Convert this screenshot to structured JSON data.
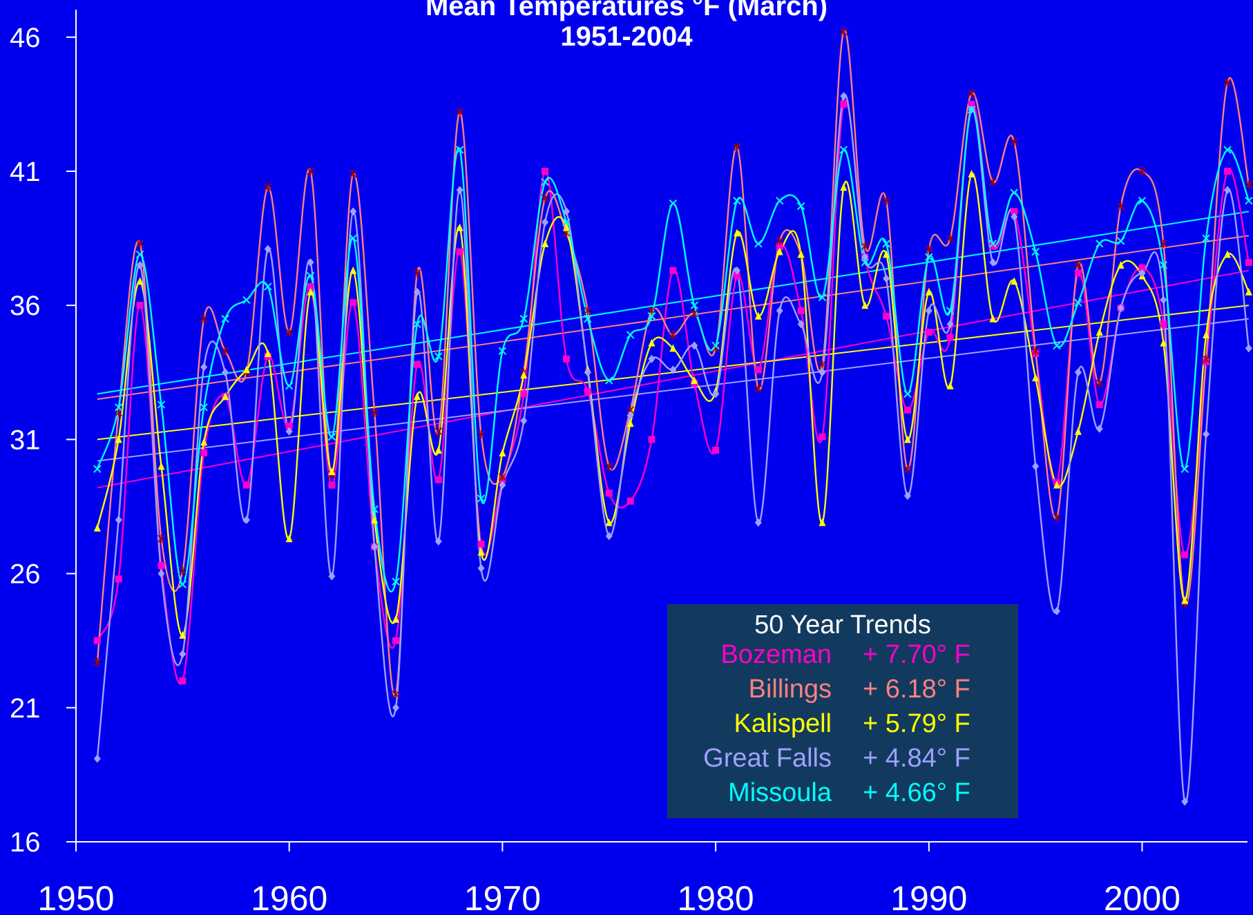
{
  "chart_data": {
    "type": "line",
    "title": "Mean Temperatures °F (March)",
    "subtitle": "1951-2004",
    "xlabel": "",
    "ylabel": "",
    "xlim": [
      1950,
      2005
    ],
    "ylim": [
      16,
      47
    ],
    "xticks": [
      "1950",
      "1960",
      "1970",
      "1980",
      "1990",
      "2000"
    ],
    "yticks": [
      "16",
      "21",
      "26",
      "31",
      "36",
      "41",
      "46"
    ],
    "grid": false,
    "x": [
      1951,
      1952,
      1953,
      1954,
      1955,
      1956,
      1957,
      1958,
      1959,
      1960,
      1961,
      1962,
      1963,
      1964,
      1965,
      1966,
      1967,
      1968,
      1969,
      1970,
      1971,
      1972,
      1973,
      1974,
      1975,
      1976,
      1977,
      1978,
      1979,
      1980,
      1981,
      1982,
      1983,
      1984,
      1985,
      1986,
      1987,
      1988,
      1989,
      1990,
      1991,
      1992,
      1993,
      1994,
      1995,
      1996,
      1997,
      1998,
      1999,
      2000,
      2001,
      2002,
      2003,
      2004,
      2005
    ],
    "series": [
      {
        "name": "Bozeman",
        "color": "#ff00cc",
        "marker": "square",
        "trend": [
          29.2,
          37.3
        ],
        "values": [
          23.5,
          25.8,
          36.0,
          26.3,
          22.0,
          30.5,
          32.6,
          29.3,
          34.1,
          31.5,
          36.7,
          29.3,
          36.1,
          27.0,
          23.5,
          33.8,
          29.5,
          38.0,
          27.1,
          29.5,
          32.7,
          41.0,
          34.0,
          32.8,
          29.0,
          28.7,
          31.0,
          37.3,
          33.1,
          30.6,
          37.1,
          33.6,
          38.2,
          35.8,
          31.1,
          43.5,
          37.8,
          35.6,
          32.1,
          35.0,
          34.8,
          43.5,
          38.2,
          39.5,
          34.2,
          29.4,
          37.2,
          32.3,
          35.9,
          37.4,
          35.3,
          26.7,
          33.9,
          41.0,
          37.6
        ]
      },
      {
        "name": "Billings",
        "color": "#ff8080",
        "marker": "star",
        "trend": [
          32.5,
          38.6
        ],
        "values": [
          22.7,
          32.0,
          38.3,
          27.3,
          26.1,
          35.5,
          34.3,
          33.5,
          40.4,
          35.0,
          41.0,
          29.7,
          40.9,
          32.0,
          21.5,
          37.2,
          31.3,
          43.2,
          31.2,
          29.6,
          33.5,
          40.0,
          38.7,
          35.8,
          30.0,
          32.1,
          35.8,
          34.9,
          35.7,
          34.4,
          41.9,
          32.9,
          38.4,
          37.9,
          33.8,
          46.2,
          38.2,
          39.9,
          29.9,
          38.1,
          38.5,
          43.9,
          40.6,
          42.1,
          34.3,
          28.1,
          37.5,
          33.1,
          39.7,
          41.0,
          38.3,
          24.9,
          34.0,
          44.3,
          40.5
        ]
      },
      {
        "name": "Kalispell",
        "color": "#ffff00",
        "marker": "triangle",
        "trend": [
          31.0,
          36.0
        ],
        "values": [
          27.7,
          31.0,
          36.9,
          30.0,
          23.7,
          30.9,
          32.6,
          33.6,
          34.2,
          27.3,
          36.5,
          29.8,
          37.3,
          28.0,
          24.3,
          32.6,
          30.6,
          38.9,
          26.8,
          30.5,
          33.4,
          38.3,
          38.9,
          33.6,
          27.9,
          31.6,
          34.6,
          34.4,
          33.2,
          32.8,
          38.7,
          35.6,
          38.0,
          37.9,
          27.9,
          40.4,
          36.0,
          37.9,
          31.0,
          36.5,
          33.0,
          40.9,
          35.5,
          36.9,
          33.3,
          29.3,
          31.3,
          35.0,
          37.5,
          37.1,
          34.6,
          25.0,
          34.9,
          37.9,
          36.5
        ]
      },
      {
        "name": "Great Falls",
        "color": "#a0a0ff",
        "marker": "diamond",
        "trend": [
          30.2,
          35.5
        ],
        "values": [
          19.1,
          28.0,
          37.5,
          26.0,
          23.0,
          33.7,
          33.5,
          28.0,
          38.1,
          31.3,
          37.6,
          25.9,
          39.5,
          27.0,
          21.0,
          36.5,
          27.2,
          40.3,
          26.2,
          29.3,
          31.7,
          39.1,
          39.5,
          33.5,
          27.4,
          31.9,
          34.0,
          33.6,
          34.5,
          32.7,
          37.3,
          27.9,
          35.8,
          35.3,
          33.5,
          43.8,
          37.8,
          37.0,
          28.9,
          35.8,
          35.3,
          43.3,
          37.6,
          39.3,
          30.0,
          24.6,
          33.5,
          31.4,
          35.9,
          37.2,
          36.2,
          17.5,
          31.2,
          40.3,
          34.4
        ]
      },
      {
        "name": "Missoula",
        "color": "#00ffff",
        "marker": "x",
        "trend": [
          32.7,
          39.5
        ],
        "values": [
          29.9,
          32.2,
          37.9,
          32.3,
          25.6,
          32.2,
          35.5,
          36.2,
          36.7,
          33.0,
          37.1,
          31.1,
          38.5,
          28.4,
          25.7,
          35.3,
          34.1,
          41.8,
          28.8,
          34.3,
          35.5,
          40.6,
          39.1,
          35.5,
          33.2,
          34.9,
          35.6,
          39.8,
          36.0,
          34.5,
          39.9,
          38.3,
          39.9,
          39.7,
          36.3,
          41.8,
          37.6,
          38.3,
          32.7,
          37.8,
          35.8,
          43.3,
          38.3,
          40.2,
          38.0,
          34.5,
          36.1,
          38.3,
          38.4,
          39.9,
          37.5,
          29.9,
          38.5,
          41.8,
          39.9
        ]
      }
    ],
    "legend": {
      "position": "bottom-right",
      "title": "50 Year Trends",
      "entries": [
        {
          "name": "Bozeman",
          "value": "+ 7.70° F",
          "color": "#ff00cc"
        },
        {
          "name": "Billings",
          "value": "+ 6.18° F",
          "color": "#ff8080"
        },
        {
          "name": "Kalispell",
          "value": "+ 5.79° F",
          "color": "#ffff00"
        },
        {
          "name": "Great Falls",
          "value": "+ 4.84° F",
          "color": "#a0a0ff"
        },
        {
          "name": "Missoula",
          "value": "+ 4.66° F",
          "color": "#00ffff"
        }
      ]
    },
    "background_color": "#0000ee",
    "axis_color": "#ffffff"
  }
}
